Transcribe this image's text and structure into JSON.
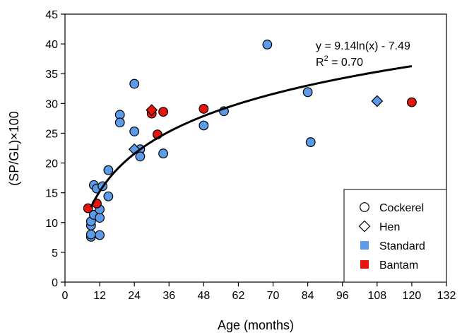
{
  "chart_data": {
    "type": "scatter",
    "xlabel": "Age (months)",
    "ylabel": "(SP/GL)×100",
    "xlim": [
      0,
      132
    ],
    "ylim": [
      0,
      45
    ],
    "xticks": [
      0,
      12,
      24,
      36,
      48,
      62,
      70,
      84,
      96,
      108,
      120,
      132
    ],
    "yticks": [
      0,
      5,
      10,
      15,
      20,
      25,
      30,
      35,
      40,
      45
    ],
    "grid": false,
    "legend_position": "bottom-right",
    "colors": {
      "Standard": "#5b9bea",
      "Bantam": "#e8150c"
    },
    "legend": [
      {
        "label": "Cockerel",
        "kind": "circle"
      },
      {
        "label": "Hen",
        "kind": "diamond"
      },
      {
        "label": "Standard",
        "kind": "square",
        "color_key": "Standard"
      },
      {
        "label": "Bantam",
        "kind": "square",
        "color_key": "Bantam"
      }
    ],
    "trendline": {
      "equation": "y = 9.14ln(x) - 7.49",
      "r2_prefix": "R",
      "r2_sup": "2",
      "r2_suffix": " = 0.70",
      "a": 9.14,
      "b": -7.49,
      "x_range": [
        9,
        120
      ]
    },
    "series": [
      {
        "sex": "Cockerel",
        "breed": "Standard",
        "points": [
          [
            9,
            7.6
          ],
          [
            9,
            8.0
          ],
          [
            9,
            9.5
          ],
          [
            9,
            10.2
          ],
          [
            10,
            16.3
          ],
          [
            10,
            11.3
          ],
          [
            11,
            15.7
          ],
          [
            12,
            7.9
          ],
          [
            12,
            10.8
          ],
          [
            12,
            12.2
          ],
          [
            13,
            16.1
          ],
          [
            15,
            18.8
          ],
          [
            15,
            14.4
          ],
          [
            19,
            28.1
          ],
          [
            19,
            26.8
          ],
          [
            24,
            33.3
          ],
          [
            24,
            25.3
          ],
          [
            26,
            22.3
          ],
          [
            26,
            21.1
          ],
          [
            34,
            21.6
          ],
          [
            48,
            26.3
          ],
          [
            55,
            28.7
          ],
          [
            70,
            39.9
          ],
          [
            84,
            31.9
          ],
          [
            85,
            23.5
          ]
        ]
      },
      {
        "sex": "Cockerel",
        "breed": "Bantam",
        "points": [
          [
            8,
            12.4
          ],
          [
            11,
            13.2
          ],
          [
            30,
            28.3
          ],
          [
            32,
            24.8
          ],
          [
            34,
            28.6
          ],
          [
            48,
            29.1
          ],
          [
            120,
            30.2
          ]
        ]
      },
      {
        "sex": "Hen",
        "breed": "Standard",
        "points": [
          [
            24,
            22.3
          ],
          [
            108,
            30.4
          ]
        ]
      },
      {
        "sex": "Hen",
        "breed": "Bantam",
        "points": [
          [
            30,
            28.9
          ]
        ]
      }
    ]
  }
}
